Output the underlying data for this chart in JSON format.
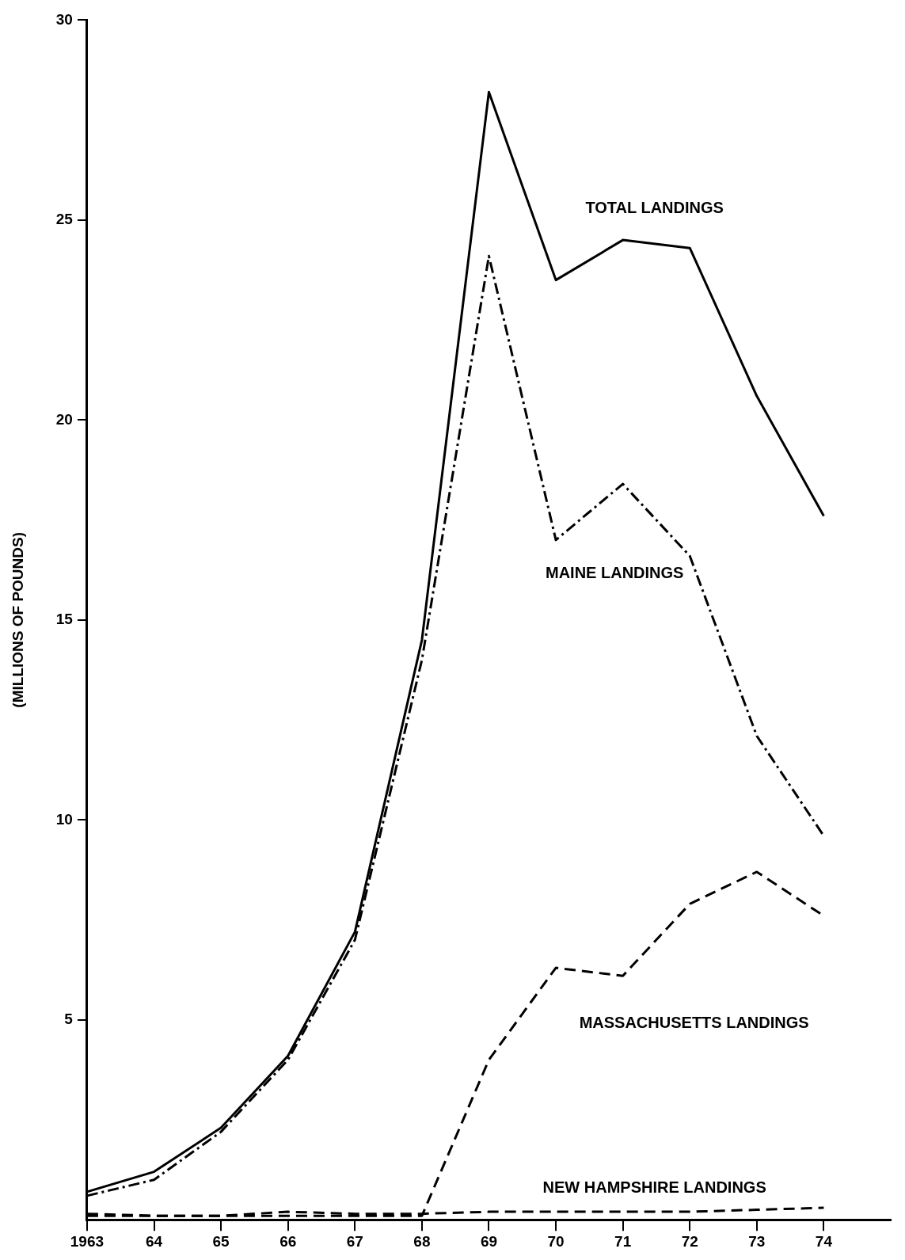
{
  "chart_data": {
    "type": "line",
    "ylabel": "(MILLIONS OF POUNDS)",
    "x": [
      1963,
      1964,
      1965,
      1966,
      1967,
      1968,
      1969,
      1970,
      1971,
      1972,
      1973,
      1974
    ],
    "xlim": [
      1963,
      1975
    ],
    "xticks": [
      1963,
      {
        "value": 1964,
        "label": "64"
      },
      {
        "value": 1965,
        "label": "65"
      },
      {
        "value": 1966,
        "label": "66"
      },
      {
        "value": 1967,
        "label": "67"
      },
      {
        "value": 1968,
        "label": "68"
      },
      {
        "value": 1969,
        "label": "69"
      },
      {
        "value": 1970,
        "label": "70"
      },
      {
        "value": 1971,
        "label": "71"
      },
      {
        "value": 1972,
        "label": "72"
      },
      {
        "value": 1973,
        "label": "73"
      },
      {
        "value": 1974,
        "label": "74"
      }
    ],
    "ylim": [
      0,
      30
    ],
    "yticks": [
      5,
      10,
      15,
      20,
      25,
      30
    ],
    "grid": false,
    "legend": false,
    "marker": "none",
    "series": [
      {
        "name": "TOTAL LANDINGS",
        "color": "#000000",
        "line_style": "solid",
        "values": [
          0.7,
          1.2,
          2.3,
          4.1,
          7.2,
          14.5,
          28.2,
          23.5,
          24.5,
          24.3,
          20.6,
          17.6
        ]
      },
      {
        "name": "MAINE LANDINGS",
        "color": "#000000",
        "line_style": "dashdot",
        "values": [
          0.6,
          1.0,
          2.2,
          4.0,
          7.0,
          14.0,
          24.1,
          17.0,
          18.4,
          16.6,
          12.1,
          9.6
        ]
      },
      {
        "name": "MASSACHUSETTS LANDINGS",
        "color": "#000000",
        "line_style": "dashed",
        "values": [
          0.1,
          0.1,
          0.1,
          0.1,
          0.1,
          0.1,
          4.0,
          6.3,
          6.1,
          7.9,
          8.7,
          7.6
        ]
      },
      {
        "name": "NEW HAMPSHIRE LANDINGS",
        "color": "#000000",
        "line_style": "dashed",
        "values": [
          0.15,
          0.1,
          0.1,
          0.2,
          0.15,
          0.15,
          0.2,
          0.2,
          0.2,
          0.2,
          0.25,
          0.3
        ]
      }
    ]
  }
}
